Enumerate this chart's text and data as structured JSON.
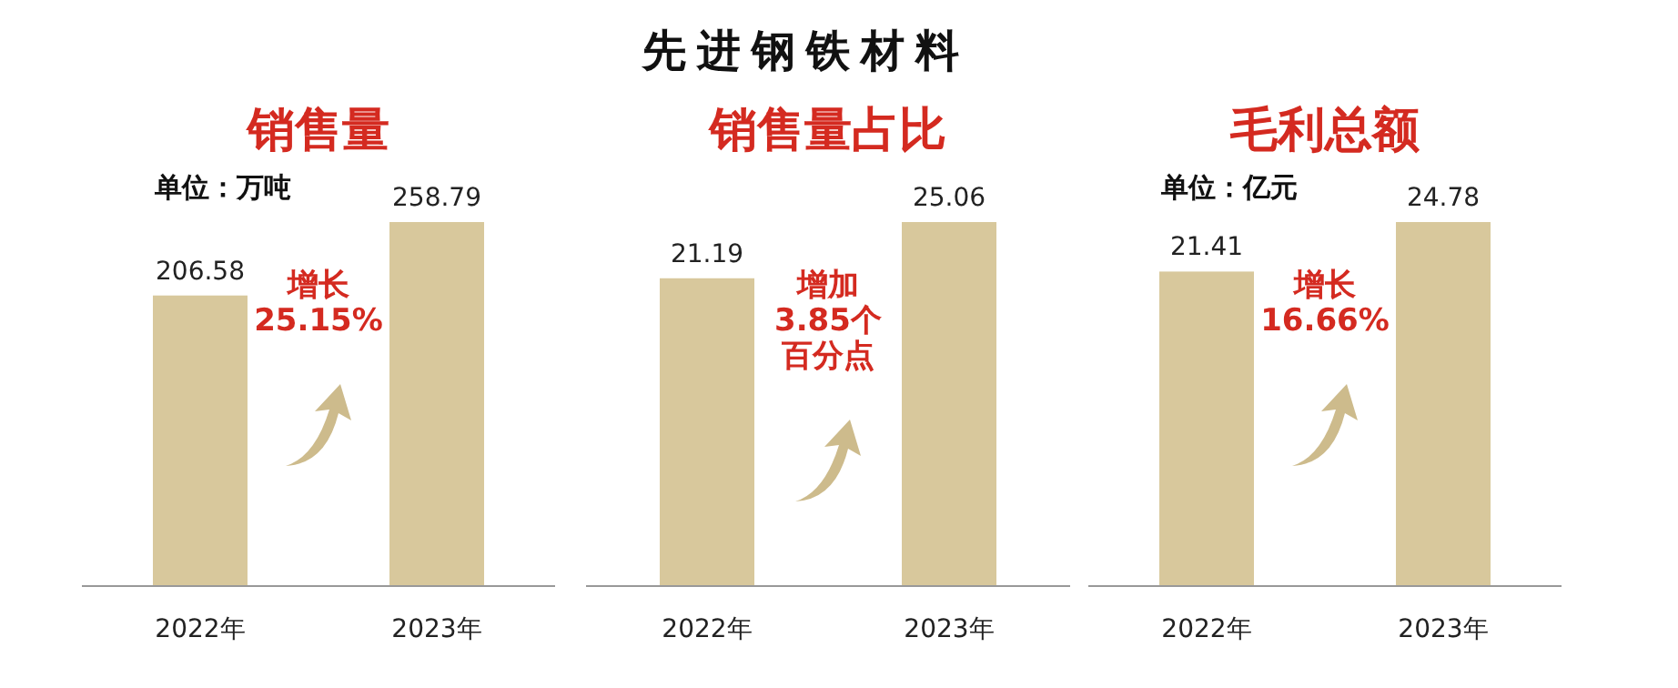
{
  "chart_data": [
    {
      "type": "bar",
      "subtitle": "销售量",
      "ylabel": "单位：万吨",
      "categories": [
        "2022年",
        "2023年"
      ],
      "values": [
        206.58,
        258.79
      ],
      "color": "#d8c89c",
      "data_labels": true,
      "tick_labels": "x",
      "annotations": [
        "增长",
        "25.15%"
      ]
    },
    {
      "type": "bar",
      "title": "先进钢铁材料",
      "subtitle": "销售量占比",
      "categories": [
        "2022年",
        "2023年"
      ],
      "values": [
        21.19,
        25.06
      ],
      "color": "#d8c89c",
      "data_labels": true,
      "tick_labels": "x",
      "annotations": [
        "增加",
        "3.85个",
        "百分点"
      ]
    },
    {
      "type": "bar",
      "subtitle": "毛利总额",
      "ylabel": "单位：亿元",
      "categories": [
        "2022年",
        "2023年"
      ],
      "values": [
        21.41,
        24.78
      ],
      "color": "#d8c89c",
      "data_labels": true,
      "tick_labels": "x",
      "annotations": [
        "增长",
        "16.66%"
      ]
    }
  ]
}
